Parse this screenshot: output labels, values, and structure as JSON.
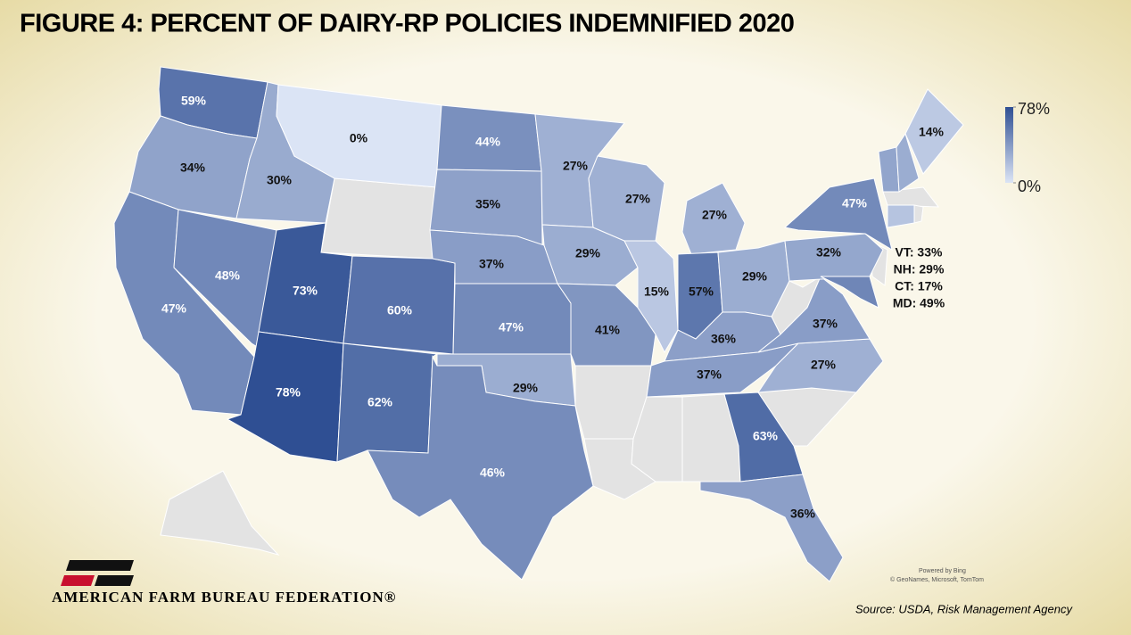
{
  "chart_data": {
    "type": "map",
    "title": "FIGURE 4: PERCENT OF DAIRY-RP POLICIES INDEMNIFIED 2020",
    "values": [
      59,
      34,
      47,
      48,
      30,
      0,
      73,
      78,
      60,
      62,
      44,
      35,
      37,
      47,
      29,
      46,
      27,
      29,
      41,
      27,
      15,
      27,
      57,
      29,
      36,
      37,
      63,
      36,
      27,
      37,
      32,
      47,
      14,
      33,
      29,
      17,
      49
    ],
    "value_labels": [
      "59%",
      "34%",
      "47%",
      "48%",
      "30%",
      "0%",
      "73%",
      "78%",
      "60%",
      "62%",
      "44%",
      "35%",
      "37%",
      "47%",
      "29%",
      "46%",
      "27%",
      "29%",
      "41%",
      "27%",
      "15%",
      "27%",
      "57%",
      "29%",
      "36%",
      "37%",
      "63%",
      "36%",
      "27%",
      "37%",
      "32%",
      "47%",
      "14%",
      "VT: 33%",
      "NH: 29%",
      "CT: 17%",
      "MD: 49%"
    ],
    "clim": [
      0,
      78
    ],
    "colors": [
      "#dbe4f5",
      "#2f4f93"
    ],
    "cticks": [
      {
        "value": 78,
        "label": "78%"
      },
      {
        "value": 0,
        "label": "0%"
      }
    ],
    "source": "Source: USDA, Risk Management Agency",
    "attribution": [
      "Powered by Bing",
      "© GeoNames, Microsoft, TomTom"
    ],
    "organization": "AMERICAN FARM BUREAU FEDERATION®"
  }
}
